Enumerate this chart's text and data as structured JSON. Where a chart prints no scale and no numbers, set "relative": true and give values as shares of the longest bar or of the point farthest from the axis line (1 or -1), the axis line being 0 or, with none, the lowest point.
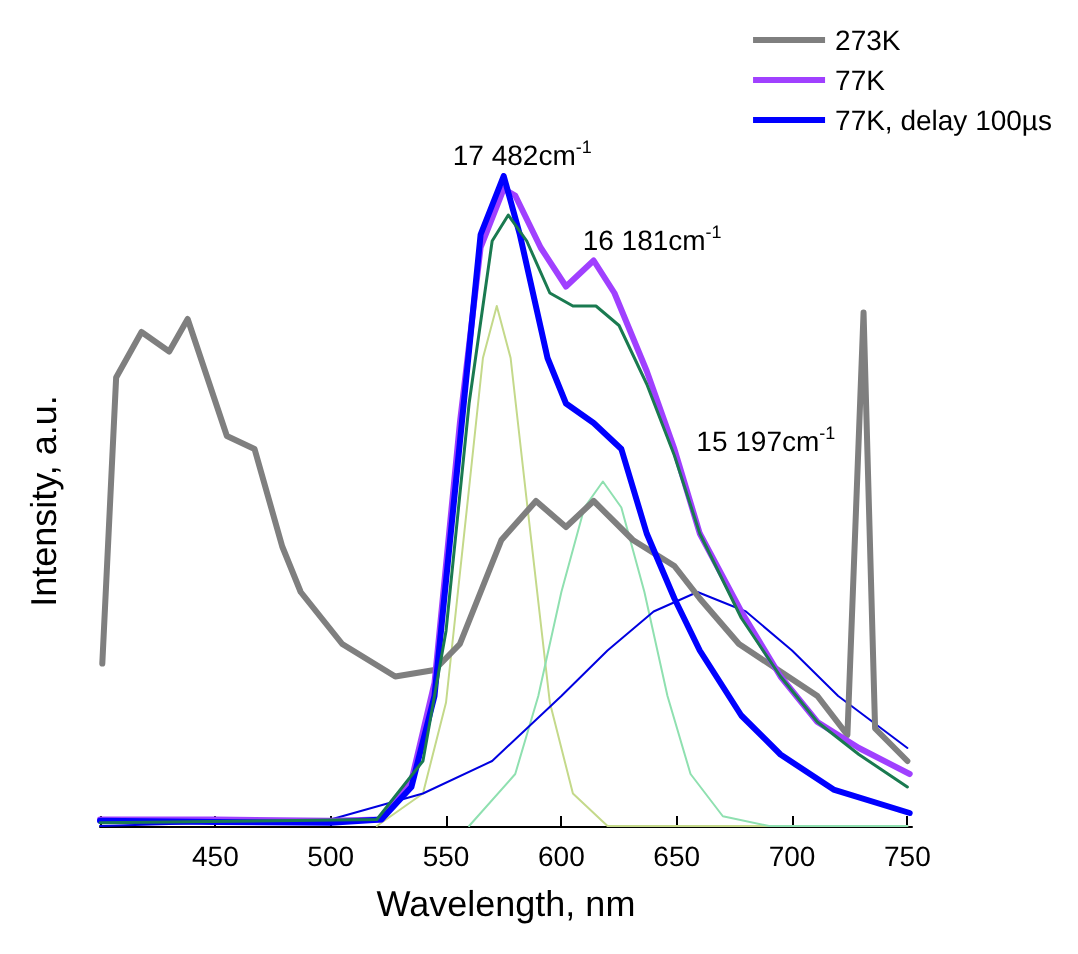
{
  "chart_data": {
    "type": "line",
    "relative": true,
    "xlabel": "Wavelength, nm",
    "ylabel": "Intensity, a.u.",
    "xlim": [
      400,
      752
    ],
    "xticks": [
      {
        "value": 400,
        "label": null
      },
      450,
      500,
      550,
      600,
      650,
      700,
      750
    ],
    "legend": "top right",
    "marker": "none",
    "grid": false,
    "annotations": [
      "17 482cm$^{-1}$",
      "16 181cm$^{-1}$",
      "15 197cm$^{-1}$"
    ],
    "series": [
      {
        "name": "273K",
        "color": "#7f7f7f",
        "x": [
          401,
          407,
          418,
          430,
          438,
          455,
          467,
          479,
          487,
          505,
          528,
          545,
          556,
          574,
          589,
          602,
          614,
          631,
          649,
          660,
          677,
          694,
          711,
          724,
          731,
          736,
          750
        ],
        "values": [
          0.25,
          0.69,
          0.76,
          0.73,
          0.78,
          0.6,
          0.58,
          0.43,
          0.36,
          0.28,
          0.23,
          0.24,
          0.28,
          0.44,
          0.5,
          0.46,
          0.5,
          0.44,
          0.4,
          0.35,
          0.28,
          0.24,
          0.2,
          0.14,
          0.79,
          0.15,
          0.1
        ]
      },
      {
        "name": "77K",
        "color": "#a040ff",
        "x": [
          400,
          450,
          500,
          522,
          535,
          545,
          556,
          565,
          575,
          580,
          591,
          602,
          614,
          623,
          637,
          649,
          660,
          678,
          695,
          711,
          729,
          751
        ],
        "values": [
          0.01,
          0.01,
          0.008,
          0.01,
          0.07,
          0.22,
          0.62,
          0.89,
          0.98,
          0.97,
          0.89,
          0.83,
          0.87,
          0.82,
          0.7,
          0.58,
          0.45,
          0.33,
          0.23,
          0.16,
          0.12,
          0.08
        ]
      },
      {
        "name": "77K, delay 100µs",
        "color": "#0000ff",
        "x": [
          400,
          450,
          500,
          522,
          535,
          545,
          556,
          565,
          575,
          582,
          594,
          602,
          614,
          626,
          637,
          649,
          660,
          678,
          695,
          718,
          751
        ],
        "values": [
          0.008,
          0.006,
          0.005,
          0.01,
          0.06,
          0.2,
          0.59,
          0.91,
          1.0,
          0.91,
          0.72,
          0.65,
          0.62,
          0.58,
          0.45,
          0.35,
          0.27,
          0.17,
          0.11,
          0.056,
          0.02
        ]
      },
      {
        "color": "#1a7a50",
        "x": [
          400,
          520,
          540,
          550,
          560,
          570,
          577,
          585,
          595,
          605,
          615,
          625,
          637,
          649,
          660,
          678,
          695,
          711,
          729,
          750
        ],
        "values": [
          0.005,
          0.01,
          0.1,
          0.3,
          0.65,
          0.9,
          0.94,
          0.9,
          0.82,
          0.8,
          0.8,
          0.77,
          0.68,
          0.57,
          0.45,
          0.32,
          0.23,
          0.16,
          0.11,
          0.06
        ]
      },
      {
        "color": "#c4d98a",
        "x": [
          520,
          540,
          550,
          560,
          566,
          572,
          578,
          585,
          595,
          605,
          620,
          750
        ],
        "values": [
          0,
          0.05,
          0.19,
          0.52,
          0.72,
          0.8,
          0.72,
          0.5,
          0.19,
          0.05,
          0,
          0
        ]
      },
      {
        "color": "#8fe0b0",
        "x": [
          560,
          580,
          590,
          600,
          610,
          618,
          626,
          636,
          646,
          656,
          670,
          690,
          750
        ],
        "values": [
          0,
          0.08,
          0.2,
          0.36,
          0.49,
          0.53,
          0.49,
          0.36,
          0.2,
          0.08,
          0.015,
          0,
          0
        ]
      },
      {
        "color": "#0000e0",
        "x": [
          400,
          500,
          540,
          570,
          600,
          620,
          640,
          659,
          680,
          700,
          720,
          750
        ],
        "values": [
          0,
          0.01,
          0.05,
          0.1,
          0.2,
          0.27,
          0.33,
          0.36,
          0.33,
          0.27,
          0.2,
          0.12
        ]
      }
    ]
  }
}
